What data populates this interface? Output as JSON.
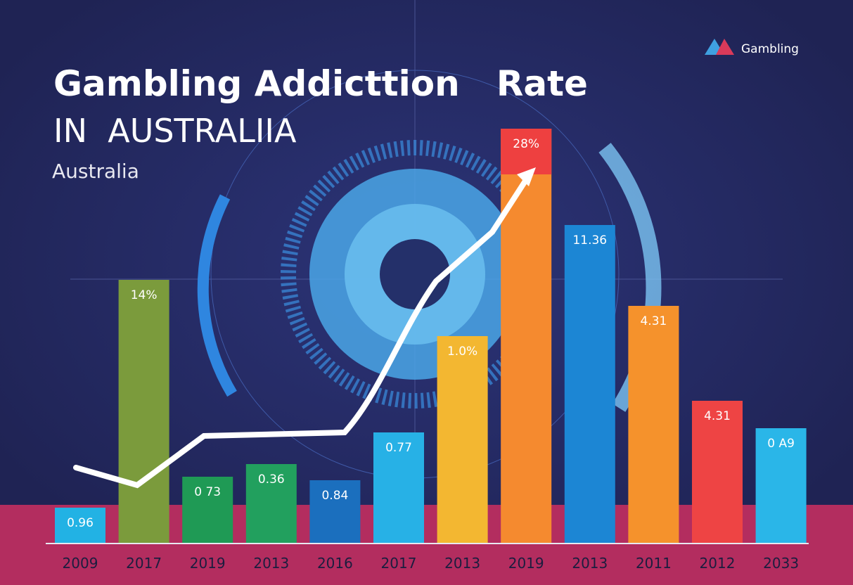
{
  "chart_data": {
    "type": "bar",
    "title": "Gambling Addicttion   Rate",
    "subtitle": "IN  AUSTRALIIA",
    "caption": "Australia",
    "brand": "Gambling",
    "categories": [
      "2009",
      "2017",
      "2019",
      "2013",
      "2016",
      "2017",
      "2013",
      "2019",
      "2013",
      "2011",
      "2012",
      "2033"
    ],
    "values": [
      51,
      375,
      95,
      113,
      90,
      158,
      295,
      590,
      453,
      338,
      203,
      164
    ],
    "bar_labels": [
      "0.96",
      "14%",
      "0 73",
      "0.36",
      "0.84",
      "0.77",
      "1.0%",
      "28%",
      "11.36",
      "4.31",
      "4.31",
      "0 A9"
    ],
    "colors": [
      "#22b2e4",
      "#7b9b3c",
      "#1f9a55",
      "#22a05e",
      "#1b6fbe",
      "#27b1e6",
      "#f3b731",
      "#f58a2f",
      "#1c86d4",
      "#f5922c",
      "#ee4444",
      "#2ab6e8"
    ]
  }
}
